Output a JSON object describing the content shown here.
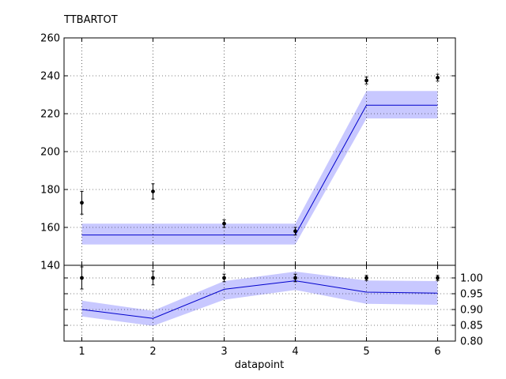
{
  "chart_data": [
    {
      "type": "line",
      "title": "TTBARTOT",
      "xlabel": "",
      "ylabel": "",
      "xlim": [
        0.75,
        6.25
      ],
      "ylim": [
        140,
        260
      ],
      "yticks": [
        140,
        160,
        180,
        200,
        220,
        240,
        260
      ],
      "x": [
        1,
        2,
        3,
        4,
        5,
        6
      ],
      "grid": true,
      "band": {
        "x": [
          1,
          2,
          3,
          4,
          5,
          6
        ],
        "center": [
          156,
          156,
          156,
          156,
          224.5,
          224.5
        ],
        "lower": [
          151,
          151,
          151,
          151,
          217.5,
          217.5
        ],
        "upper": [
          162,
          162,
          162,
          162,
          232,
          232
        ],
        "line_color": "#0000cc",
        "fill_color": "#c8c8ff"
      },
      "points": {
        "x": [
          1,
          2,
          3,
          4,
          5,
          6
        ],
        "y": [
          173,
          179,
          162,
          158,
          237.5,
          239
        ],
        "err": [
          6,
          4,
          2,
          2,
          1.8,
          1.8
        ],
        "color": "#000000"
      }
    },
    {
      "type": "line",
      "xlabel": "datapoint",
      "ylabel": "",
      "xlim": [
        0.75,
        6.25
      ],
      "ylim": [
        0.8,
        1.04
      ],
      "yticks": [
        0.8,
        0.85,
        0.9,
        0.95,
        1.0
      ],
      "ytick_labels": [
        "0.80",
        "0.85",
        "0.90",
        "0.95",
        "1.00"
      ],
      "xticks": [
        1,
        2,
        3,
        4,
        5,
        6
      ],
      "xtick_labels": [
        "1",
        "2",
        "3",
        "4",
        "5",
        "6"
      ],
      "grid": true,
      "band": {
        "x": [
          1,
          2,
          3,
          4,
          5,
          6
        ],
        "center": [
          0.9,
          0.872,
          0.964,
          0.991,
          0.955,
          0.952
        ],
        "lower": [
          0.878,
          0.848,
          0.931,
          0.962,
          0.918,
          0.915
        ],
        "upper": [
          0.928,
          0.896,
          0.99,
          1.02,
          0.992,
          0.99
        ],
        "line_color": "#0000cc",
        "fill_color": "#c8c8ff"
      },
      "points": {
        "x": [
          1,
          2,
          3,
          4,
          5,
          6
        ],
        "y": [
          1.0,
          1.0,
          1.0,
          1.0,
          1.0,
          1.0
        ],
        "err": [
          0.035,
          0.022,
          0.012,
          0.012,
          0.008,
          0.008
        ],
        "color": "#000000"
      }
    }
  ]
}
